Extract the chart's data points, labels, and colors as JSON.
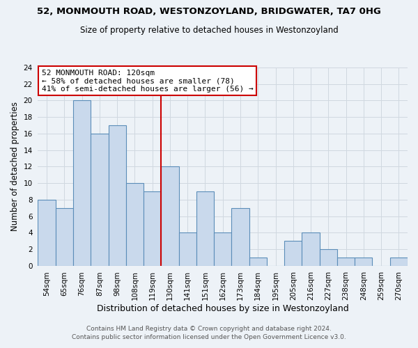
{
  "title": "52, MONMOUTH ROAD, WESTONZOYLAND, BRIDGWATER, TA7 0HG",
  "subtitle": "Size of property relative to detached houses in Westonzoyland",
  "xlabel": "Distribution of detached houses by size in Westonzoyland",
  "ylabel": "Number of detached properties",
  "footer_line1": "Contains HM Land Registry data © Crown copyright and database right 2024.",
  "footer_line2": "Contains public sector information licensed under the Open Government Licence v3.0.",
  "bar_labels": [
    "54sqm",
    "65sqm",
    "76sqm",
    "87sqm",
    "98sqm",
    "108sqm",
    "119sqm",
    "130sqm",
    "141sqm",
    "151sqm",
    "162sqm",
    "173sqm",
    "184sqm",
    "195sqm",
    "205sqm",
    "216sqm",
    "227sqm",
    "238sqm",
    "248sqm",
    "259sqm",
    "270sqm"
  ],
  "bar_values": [
    8,
    7,
    20,
    16,
    17,
    10,
    9,
    12,
    4,
    9,
    4,
    7,
    1,
    0,
    3,
    4,
    2,
    1,
    1,
    0,
    1
  ],
  "bar_color": "#c9d9ec",
  "bar_edge_color": "#5b8db8",
  "vline_color": "#cc0000",
  "vline_index": 6,
  "ylim": [
    0,
    24
  ],
  "yticks": [
    0,
    2,
    4,
    6,
    8,
    10,
    12,
    14,
    16,
    18,
    20,
    22,
    24
  ],
  "annotation_title": "52 MONMOUTH ROAD: 120sqm",
  "annotation_line1": "← 58% of detached houses are smaller (78)",
  "annotation_line2": "41% of semi-detached houses are larger (56) →",
  "annotation_box_color": "#ffffff",
  "annotation_box_edge": "#cc0000",
  "grid_color": "#d0d8e0",
  "background_color": "#edf2f7",
  "title_fontsize": 9.5,
  "subtitle_fontsize": 8.5,
  "ylabel_fontsize": 8.5,
  "xlabel_fontsize": 9,
  "tick_fontsize": 7.5,
  "annot_fontsize": 8,
  "footer_fontsize": 6.5,
  "footer_color": "#555555"
}
